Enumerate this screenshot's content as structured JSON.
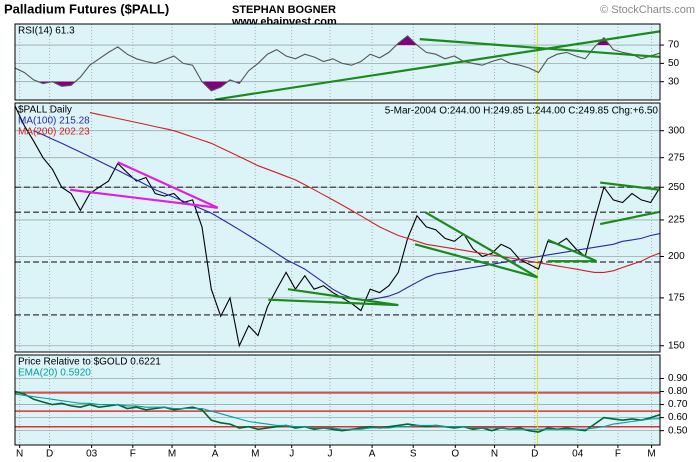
{
  "header": {
    "title": "Palladium Futures ($PALL)",
    "author": "STEPHAN BOGNER",
    "website": "www.ebainvest.com",
    "credit": "© StockCharts.com"
  },
  "marker_line": {
    "x": 55.9,
    "color": "#e6e600"
  },
  "chart_data": [
    {
      "type": "line",
      "legend_label": "RSI(14) 61.3",
      "xlim": [
        0,
        69
      ],
      "ylim": [
        10,
        93
      ],
      "yticks": [
        30,
        50,
        70
      ],
      "grid": true,
      "extreme_fill": "#800080",
      "bands": [
        30,
        70
      ],
      "series": [
        {
          "name": "RSI(14)",
          "color": "#555555",
          "values": [
            45,
            40,
            32,
            28,
            30,
            25,
            26,
            35,
            48,
            55,
            62,
            68,
            60,
            55,
            52,
            50,
            54,
            58,
            50,
            48,
            30,
            20,
            24,
            32,
            28,
            42,
            50,
            60,
            65,
            58,
            55,
            60,
            57,
            52,
            55,
            50,
            48,
            52,
            60,
            56,
            62,
            72,
            80,
            70,
            62,
            60,
            55,
            58,
            52,
            50,
            48,
            52,
            55,
            50,
            48,
            45,
            40,
            55,
            60,
            62,
            58,
            55,
            68,
            78,
            65,
            62,
            60,
            55,
            58,
            61.3
          ]
        }
      ],
      "trendlines": [
        {
          "color": "#1a8a1a",
          "points": [
            [
              21.4,
              10.5
            ],
            [
              69,
              85
            ]
          ]
        },
        {
          "color": "#1a8a1a",
          "points": [
            [
              43.3,
              76.5
            ],
            [
              69,
              57
            ]
          ]
        }
      ]
    },
    {
      "type": "line",
      "info": "5-Mar-2004  O:244.00  H:249.85  L:244.00  C:249.85  Chg:+6.50",
      "xlim": [
        0,
        69
      ],
      "ylim": [
        147,
        328
      ],
      "log_scale": true,
      "yticks": [
        150,
        175,
        200,
        225,
        250,
        275,
        300
      ],
      "grid": true,
      "levels": [
        250,
        230.6,
        196.5,
        165.7
      ],
      "series": [
        {
          "name": "$PALL Daily",
          "color": "#000000",
          "values": [
            325,
            305,
            290,
            275,
            265,
            250,
            245,
            232,
            245,
            250,
            255,
            270,
            262,
            255,
            258,
            245,
            243,
            245,
            238,
            240,
            220,
            180,
            165,
            175,
            150,
            160,
            155,
            170,
            180,
            190,
            180,
            188,
            180,
            182,
            178,
            175,
            172,
            168,
            180,
            178,
            182,
            190,
            212,
            228,
            220,
            218,
            212,
            210,
            215,
            205,
            200,
            202,
            208,
            205,
            198,
            195,
            192,
            210,
            208,
            212,
            205,
            200,
            225,
            250,
            240,
            238,
            245,
            240,
            238,
            249.85
          ]
        },
        {
          "name": "MA(100) 215.28",
          "color": "#2828a0",
          "values": [
            null,
            null,
            300,
            296,
            292,
            288,
            284,
            280,
            276,
            272,
            268,
            264,
            260,
            256,
            252,
            248,
            245,
            242,
            239,
            236,
            233,
            230,
            226,
            222,
            218,
            214,
            210,
            206,
            202,
            198,
            195,
            192,
            188,
            184,
            180,
            177,
            175,
            174,
            174,
            175,
            176,
            178,
            181,
            184,
            187,
            189,
            190,
            191,
            192,
            193,
            194,
            195,
            196,
            197,
            198,
            199,
            200,
            201,
            202,
            203,
            204,
            205,
            206,
            207,
            208,
            210,
            211,
            212,
            214,
            215.28
          ]
        },
        {
          "name": "MA(200) 202.23",
          "color": "#d02020",
          "values": [
            null,
            null,
            null,
            null,
            null,
            null,
            null,
            null,
            318,
            316,
            314,
            312,
            310,
            308,
            306,
            304,
            302,
            300,
            297,
            294,
            291,
            288,
            284,
            280,
            276,
            272,
            268,
            265,
            262,
            259,
            256,
            252,
            248,
            244,
            240,
            236,
            232,
            228,
            224,
            220,
            217,
            214,
            212,
            210,
            208,
            207,
            206,
            205,
            204,
            203,
            202,
            201,
            200,
            199,
            198,
            197,
            196,
            195,
            194,
            193,
            192,
            191,
            190,
            190,
            191,
            193,
            195,
            197,
            200,
            202.23
          ]
        }
      ],
      "trendlines": [
        {
          "color": "#e020e0",
          "points": [
            [
              5.9,
              248
            ],
            [
              21.7,
              234
            ]
          ]
        },
        {
          "color": "#e020e0",
          "points": [
            [
              11,
              271
            ],
            [
              21.7,
              234
            ]
          ]
        },
        {
          "color": "#1a8a1a",
          "points": [
            [
              27.1,
              174
            ],
            [
              41,
              171
            ]
          ]
        },
        {
          "color": "#1a8a1a",
          "points": [
            [
              29.2,
              180
            ],
            [
              41,
              171
            ]
          ]
        },
        {
          "color": "#1a8a1a",
          "points": [
            [
              43.9,
              230.6
            ],
            [
              55.9,
              187
            ]
          ]
        },
        {
          "color": "#1a8a1a",
          "points": [
            [
              42.8,
              208
            ],
            [
              55.9,
              187
            ]
          ]
        },
        {
          "color": "#1a8a1a",
          "points": [
            [
              57,
              211
            ],
            [
              62.2,
              197
            ]
          ]
        },
        {
          "color": "#1a8a1a",
          "points": [
            [
              57,
              197
            ],
            [
              62.2,
              197
            ]
          ]
        },
        {
          "color": "#1a8a1a",
          "points": [
            [
              62.6,
              253.8
            ],
            [
              69,
              248
            ]
          ]
        },
        {
          "color": "#1a8a1a",
          "points": [
            [
              62.6,
              222
            ],
            [
              69,
              231
            ]
          ]
        }
      ]
    },
    {
      "type": "line",
      "xlim": [
        0,
        69
      ],
      "ylim": [
        0.39,
        1.08
      ],
      "grid": true,
      "levels": [
        0.79,
        0.65,
        0.53
      ],
      "level_color": "#e03030",
      "yticks": [
        {
          "value": 0.9,
          "label": "0.90"
        },
        {
          "value": 0.8,
          "label": "0.80"
        },
        {
          "value": 0.7,
          "label": "0.70"
        },
        {
          "value": 0.6,
          "label": "0.60"
        },
        {
          "value": 0.5,
          "label": "0.50"
        }
      ],
      "xticks": [
        {
          "value": 0.5,
          "label": "N"
        },
        {
          "value": 3.7,
          "label": "D"
        },
        {
          "value": 8.2,
          "label": "03"
        },
        {
          "value": 12.6,
          "label": "F"
        },
        {
          "value": 16.8,
          "label": "M"
        },
        {
          "value": 21.4,
          "label": "A"
        },
        {
          "value": 25.7,
          "label": "M"
        },
        {
          "value": 29.6,
          "label": "J"
        },
        {
          "value": 33.7,
          "label": "J"
        },
        {
          "value": 38.2,
          "label": "A"
        },
        {
          "value": 42.6,
          "label": "S"
        },
        {
          "value": 47.1,
          "label": "O"
        },
        {
          "value": 51.3,
          "label": "N"
        },
        {
          "value": 55.6,
          "label": "D"
        },
        {
          "value": 60.2,
          "label": "04"
        },
        {
          "value": 64.5,
          "label": "F"
        },
        {
          "value": 68.1,
          "label": "M"
        }
      ],
      "series": [
        {
          "name": "Price Relative to $GOLD  0.6221",
          "color": "#006633",
          "values": [
            0.8,
            0.78,
            0.74,
            0.72,
            0.7,
            0.71,
            0.69,
            0.68,
            0.7,
            0.68,
            0.69,
            0.7,
            0.67,
            0.68,
            0.66,
            0.67,
            0.68,
            0.66,
            0.67,
            0.68,
            0.66,
            0.58,
            0.56,
            0.55,
            0.52,
            0.53,
            0.51,
            0.52,
            0.53,
            0.54,
            0.52,
            0.53,
            0.51,
            0.52,
            0.51,
            0.5,
            0.51,
            0.52,
            0.53,
            0.52,
            0.53,
            0.54,
            0.55,
            0.54,
            0.53,
            0.54,
            0.53,
            0.52,
            0.53,
            0.51,
            0.52,
            0.5,
            0.52,
            0.51,
            0.52,
            0.5,
            0.49,
            0.52,
            0.51,
            0.52,
            0.51,
            0.5,
            0.55,
            0.6,
            0.59,
            0.58,
            0.59,
            0.58,
            0.6,
            0.6221
          ]
        },
        {
          "name": "EMA(20) 0.5920",
          "color": "#00a0a0",
          "values": [
            0.78,
            0.77,
            0.76,
            0.75,
            0.74,
            0.73,
            0.72,
            0.71,
            0.71,
            0.7,
            0.7,
            0.7,
            0.69,
            0.69,
            0.68,
            0.68,
            0.68,
            0.67,
            0.67,
            0.67,
            0.67,
            0.65,
            0.63,
            0.61,
            0.59,
            0.57,
            0.56,
            0.55,
            0.54,
            0.54,
            0.53,
            0.53,
            0.52,
            0.52,
            0.52,
            0.51,
            0.51,
            0.51,
            0.52,
            0.52,
            0.52,
            0.53,
            0.53,
            0.54,
            0.54,
            0.54,
            0.53,
            0.53,
            0.53,
            0.52,
            0.52,
            0.52,
            0.52,
            0.51,
            0.51,
            0.51,
            0.51,
            0.51,
            0.51,
            0.51,
            0.51,
            0.51,
            0.52,
            0.53,
            0.55,
            0.56,
            0.57,
            0.58,
            0.59,
            0.592
          ]
        }
      ]
    }
  ]
}
